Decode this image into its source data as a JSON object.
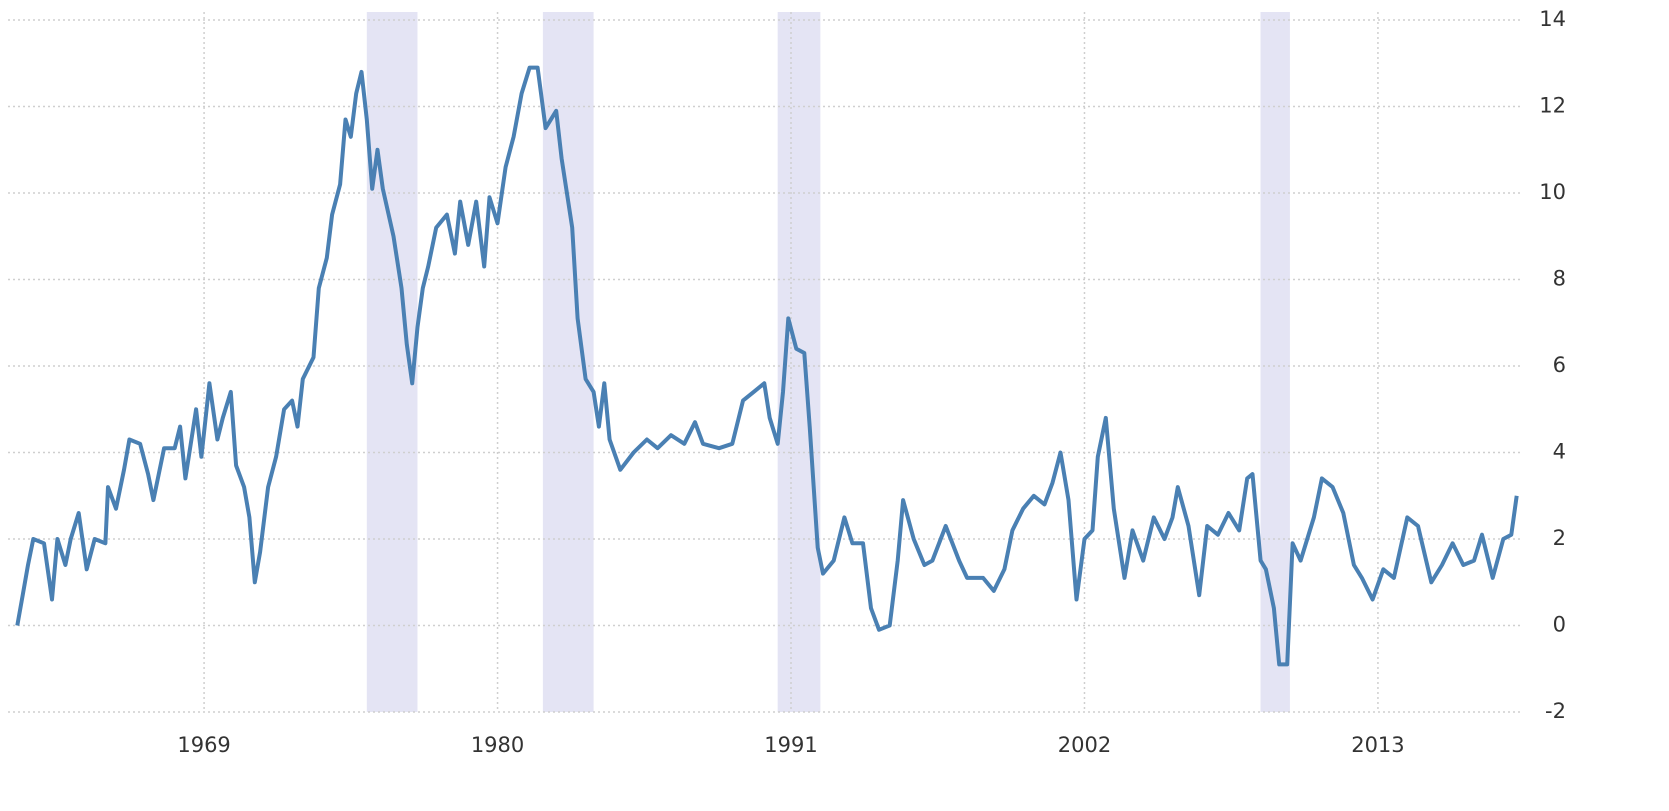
{
  "chart_data": {
    "type": "line",
    "x": [
      1962.0,
      1962.2,
      1962.4,
      1962.6,
      1963.0,
      1963.3,
      1963.5,
      1963.8,
      1964.0,
      1964.3,
      1964.6,
      1964.9,
      1965.3,
      1965.4,
      1965.7,
      1966.0,
      1966.2,
      1966.6,
      1966.9,
      1967.1,
      1967.5,
      1967.9,
      1968.1,
      1968.3,
      1968.7,
      1968.9,
      1969.2,
      1969.5,
      1969.7,
      1970.0,
      1970.2,
      1970.5,
      1970.7,
      1970.9,
      1971.1,
      1971.4,
      1971.7,
      1972.0,
      1972.3,
      1972.5,
      1972.7,
      1973.1,
      1973.3,
      1973.6,
      1973.8,
      1974.1,
      1974.3,
      1974.5,
      1974.7,
      1974.9,
      1975.1,
      1975.3,
      1975.5,
      1975.7,
      1976.1,
      1976.4,
      1976.6,
      1976.8,
      1977.0,
      1977.2,
      1977.4,
      1977.7,
      1978.1,
      1978.4,
      1978.6,
      1978.9,
      1979.2,
      1979.5,
      1979.7,
      1980.0,
      1980.3,
      1980.6,
      1980.9,
      1981.2,
      1981.5,
      1981.8,
      1982.2,
      1982.4,
      1982.8,
      1983.0,
      1983.3,
      1983.6,
      1983.8,
      1984.0,
      1984.2,
      1984.6,
      1985.1,
      1985.6,
      1986.0,
      1986.5,
      1987.0,
      1987.4,
      1987.7,
      1988.3,
      1988.8,
      1989.2,
      1989.6,
      1990.0,
      1990.2,
      1990.5,
      1990.7,
      1990.9,
      1991.2,
      1991.5,
      1991.7,
      1992.0,
      1992.2,
      1992.6,
      1993.0,
      1993.3,
      1993.7,
      1994.0,
      1994.3,
      1994.7,
      1995.0,
      1995.2,
      1995.6,
      1996.0,
      1996.3,
      1996.8,
      1997.3,
      1997.6,
      1998.2,
      1998.6,
      1999.0,
      1999.3,
      1999.7,
      2000.1,
      2000.5,
      2000.8,
      2001.1,
      2001.4,
      2001.7,
      2002.0,
      2002.3,
      2002.5,
      2002.8,
      2003.1,
      2003.5,
      2003.8,
      2004.2,
      2004.6,
      2005.0,
      2005.3,
      2005.5,
      2005.9,
      2006.3,
      2006.6,
      2007.0,
      2007.4,
      2007.8,
      2008.1,
      2008.3,
      2008.6,
      2008.8,
      2009.1,
      2009.3,
      2009.6,
      2009.8,
      2010.1,
      2010.6,
      2010.9,
      2011.3,
      2011.7,
      2012.1,
      2012.4,
      2012.8,
      2013.2,
      2013.6,
      2014.1,
      2014.5,
      2015.0,
      2015.4,
      2015.8,
      2016.2,
      2016.6,
      2016.9,
      2017.3,
      2017.7,
      2018.0,
      2018.2
    ],
    "values": [
      0,
      0.7,
      1.4,
      2.0,
      1.9,
      0.6,
      2.0,
      1.4,
      2.0,
      2.6,
      1.3,
      2.0,
      1.9,
      3.2,
      2.7,
      3.6,
      4.3,
      4.2,
      3.5,
      2.9,
      4.1,
      4.1,
      4.6,
      3.4,
      5.0,
      3.9,
      5.6,
      4.3,
      4.8,
      5.4,
      3.7,
      3.2,
      2.5,
      1.0,
      1.7,
      3.2,
      3.9,
      5.0,
      5.2,
      4.6,
      5.7,
      6.2,
      7.8,
      8.5,
      9.5,
      10.2,
      11.7,
      11.3,
      12.3,
      12.8,
      11.7,
      10.1,
      11.0,
      10.1,
      9.0,
      7.8,
      6.5,
      5.6,
      6.9,
      7.8,
      8.3,
      9.2,
      9.5,
      8.6,
      9.8,
      8.8,
      9.8,
      8.3,
      9.9,
      9.3,
      10.6,
      11.3,
      12.3,
      12.9,
      12.9,
      11.5,
      11.9,
      10.8,
      9.2,
      7.1,
      5.7,
      5.4,
      4.6,
      5.6,
      4.3,
      3.6,
      4.0,
      4.3,
      4.1,
      4.4,
      4.2,
      4.7,
      4.2,
      4.1,
      4.2,
      5.2,
      5.4,
      5.6,
      4.8,
      4.2,
      5.4,
      7.1,
      6.4,
      6.3,
      4.6,
      1.8,
      1.2,
      1.5,
      2.5,
      1.9,
      1.9,
      0.4,
      -0.1,
      0.0,
      1.5,
      2.9,
      2.0,
      1.4,
      1.5,
      2.3,
      1.5,
      1.1,
      1.1,
      0.8,
      1.3,
      2.2,
      2.7,
      3.0,
      2.8,
      3.3,
      4.0,
      2.9,
      0.6,
      2.0,
      2.2,
      3.9,
      4.8,
      2.7,
      1.1,
      2.2,
      1.5,
      2.5,
      2.0,
      2.5,
      3.2,
      2.3,
      0.7,
      2.3,
      2.1,
      2.6,
      2.2,
      3.4,
      3.5,
      1.5,
      1.3,
      0.4,
      -0.9,
      -0.9,
      1.9,
      1.5,
      2.5,
      3.4,
      3.2,
      2.6,
      1.4,
      1.1,
      0.6,
      1.3,
      1.1,
      2.5,
      2.3,
      1.0,
      1.4,
      1.9,
      1.4,
      1.5,
      2.1,
      1.1,
      2.0,
      2.1,
      3.0
    ],
    "color": "#4a80b3",
    "bands": [
      [
        1975.1,
        1977.0
      ],
      [
        1981.7,
        1983.6
      ],
      [
        1990.5,
        1992.1
      ],
      [
        2008.6,
        2009.7
      ]
    ],
    "band_color": "#e4e4f4",
    "xlim": [
      1961.8,
      2018.4
    ],
    "xticks": [
      1969,
      1980,
      1991,
      2002,
      2013
    ],
    "ylim": [
      -2,
      14
    ],
    "yticks": [
      -2,
      0,
      2,
      4,
      6,
      8,
      10,
      12,
      14
    ],
    "grid": true
  }
}
